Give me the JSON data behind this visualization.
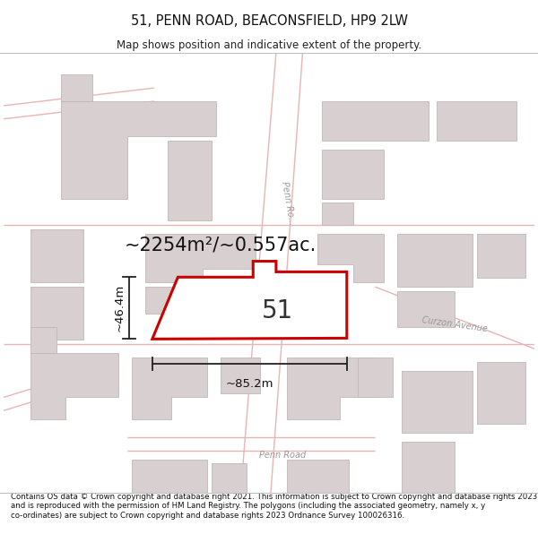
{
  "title": "51, PENN ROAD, BEACONSFIELD, HP9 2LW",
  "subtitle": "Map shows position and indicative extent of the property.",
  "footer": "Contains OS data © Crown copyright and database right 2021. This information is subject to Crown copyright and database rights 2023 and is reproduced with the permission of HM Land Registry. The polygons (including the associated geometry, namely x, y co-ordinates) are subject to Crown copyright and database rights 2023 Ordnance Survey 100026316.",
  "area_label": "~2254m²/~0.557ac.",
  "number_label": "51",
  "width_label": "~85.2m",
  "height_label": "~46.4m",
  "map_bg": "#faf8f8",
  "road_line_color": "#e8b4b4",
  "building_fill": "#d8d0d0",
  "building_edge": "#c0b8b8",
  "property_color": "#cc0000",
  "property_lw": 2.2,
  "title_fontsize": 10.5,
  "subtitle_fontsize": 8.5,
  "footer_fontsize": 6.2,
  "area_fontsize": 15,
  "number_fontsize": 20,
  "dim_fontsize": 9.5,
  "road_label_color": "#999999",
  "road_label_size": 7
}
